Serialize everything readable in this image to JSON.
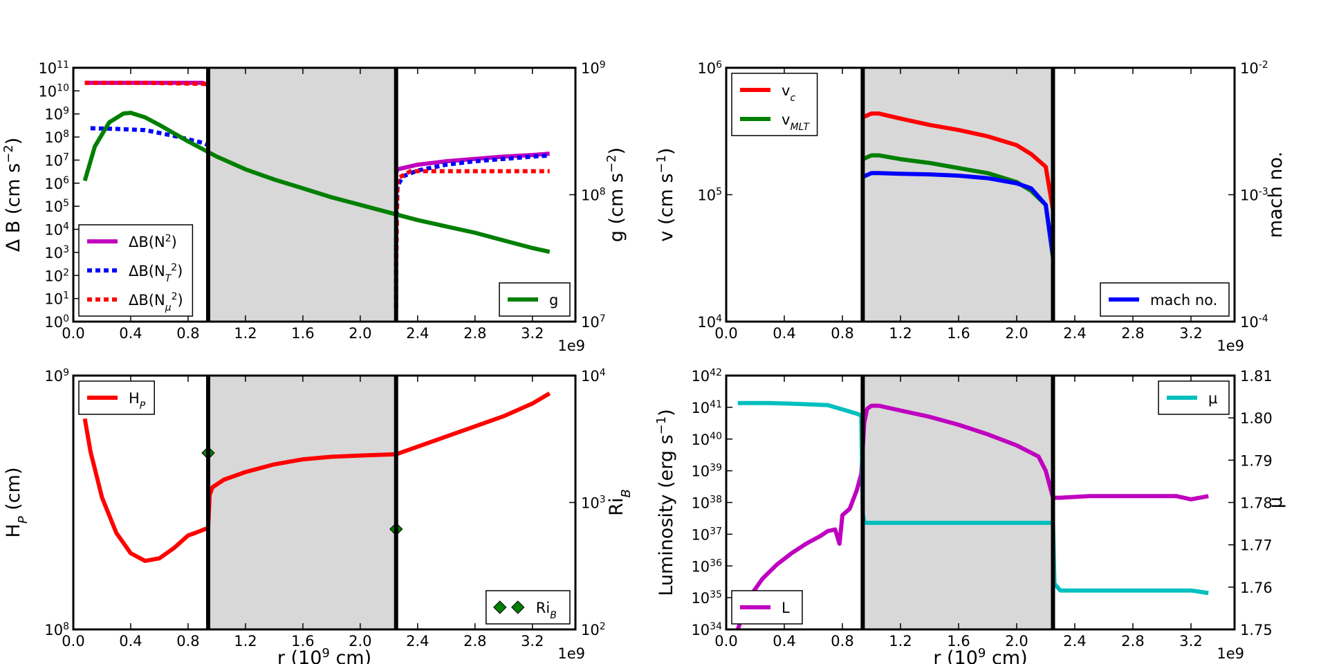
{
  "figure": {
    "xlabel": "r (10",
    "xlabel_sup": "9",
    "xlabel_tail": "  cm)",
    "offset_label": "1e9"
  },
  "chart_data": [
    {
      "id": "p1",
      "type": "line",
      "title": "",
      "xlim": [
        0,
        3.5
      ],
      "xticks": [
        0.0,
        0.4,
        0.8,
        1.2,
        1.6,
        2.0,
        2.4,
        2.8,
        3.2
      ],
      "xtick_labels": [
        "0.0",
        "0.4",
        "0.8",
        "1.2",
        "1.6",
        "2.0",
        "2.4",
        "2.8",
        "3.2"
      ],
      "show_xlabel": false,
      "convective_zone": [
        0.94,
        2.25
      ],
      "left_axis": {
        "label": "Δ B (cm s",
        "label_sup": "−2",
        "label_tail": ")",
        "scale": "log",
        "ylim_exp": [
          0,
          11
        ],
        "ticks_exp": [
          0,
          1,
          2,
          3,
          4,
          5,
          6,
          7,
          8,
          9,
          10,
          11
        ]
      },
      "right_axis": {
        "label": "g (cm s",
        "label_sup": "−2",
        "label_tail": ")",
        "scale": "log",
        "ylim_exp": [
          7,
          9
        ],
        "ticks_exp": [
          7,
          8,
          9
        ]
      },
      "series": [
        {
          "name": "ΔB(N²)",
          "legend": "ΔB(N",
          "legend_sup": "2",
          "legend_tail": ")",
          "axis": "left",
          "color": "#bf00bf",
          "style": "solid",
          "width": 6,
          "x": [
            0.08,
            0.3,
            0.6,
            0.9,
            0.94
          ],
          "y_exp": [
            10.35,
            10.35,
            10.35,
            10.35,
            10.25
          ]
        },
        {
          "name": "ΔB(N²) outer",
          "legend": "",
          "axis": "left",
          "color": "#bf00bf",
          "style": "solid",
          "width": 6,
          "x": [
            2.25,
            2.26,
            2.4,
            2.6,
            2.8,
            3.0,
            3.2,
            3.32
          ],
          "y_exp": [
            6.45,
            6.6,
            6.8,
            6.95,
            7.05,
            7.15,
            7.22,
            7.28
          ]
        },
        {
          "name": "ΔB(N_T²)",
          "legend": "ΔB(N",
          "legend_sub": "T",
          "legend_sup": "2",
          "legend_tail": ")",
          "axis": "left",
          "color": "#0000ff",
          "style": "dotted",
          "width": 6,
          "x": [
            0.12,
            0.3,
            0.5,
            0.7,
            0.9,
            0.94
          ],
          "y_exp": [
            8.38,
            8.35,
            8.3,
            8.05,
            7.75,
            7.65
          ]
        },
        {
          "name": "ΔB(N_T²) outer",
          "legend": "",
          "axis": "left",
          "color": "#0000ff",
          "style": "dotted",
          "width": 6,
          "x": [
            2.25,
            2.25,
            2.26,
            2.3,
            2.4,
            2.6,
            2.8,
            3.0,
            3.2,
            3.32
          ],
          "y_exp": [
            0.6,
            3.5,
            5.9,
            6.3,
            6.55,
            6.8,
            6.95,
            7.05,
            7.15,
            7.2
          ]
        },
        {
          "name": "ΔB(N_μ²)",
          "legend": "ΔB(N",
          "legend_sub": "μ",
          "legend_sup": "2",
          "legend_tail": ")",
          "axis": "left",
          "color": "#ff0000",
          "style": "dotted",
          "width": 6,
          "x": [
            0.08,
            0.5,
            0.94
          ],
          "y_exp": [
            10.35,
            10.35,
            10.3
          ]
        },
        {
          "name": "ΔB(N_μ²) outer",
          "legend": "",
          "axis": "left",
          "color": "#ff0000",
          "style": "dotted",
          "width": 6,
          "x": [
            2.25,
            2.26,
            2.35,
            2.6,
            2.9,
            3.32
          ],
          "y_exp": [
            2.0,
            6.2,
            6.52,
            6.52,
            6.52,
            6.52
          ]
        },
        {
          "name": "g",
          "legend": "g",
          "axis": "right",
          "color": "#007f00",
          "style": "solid",
          "width": 6,
          "x": [
            0.08,
            0.15,
            0.25,
            0.35,
            0.4,
            0.5,
            0.6,
            0.8,
            1.0,
            1.2,
            1.4,
            1.6,
            1.8,
            2.0,
            2.2,
            2.4,
            2.6,
            2.8,
            3.0,
            3.2,
            3.32
          ],
          "y_exp": [
            8.11,
            8.38,
            8.57,
            8.64,
            8.645,
            8.61,
            8.55,
            8.42,
            8.3,
            8.2,
            8.12,
            8.05,
            7.98,
            7.92,
            7.86,
            7.8,
            7.75,
            7.7,
            7.64,
            7.58,
            7.55
          ]
        }
      ],
      "legends": [
        {
          "position": "lower-left",
          "entries": [
            0,
            2,
            4
          ]
        },
        {
          "position": "lower-right",
          "entries": [
            6
          ]
        }
      ]
    },
    {
      "id": "p2",
      "type": "line",
      "title": "",
      "xlim": [
        0,
        3.5
      ],
      "xticks": [
        0.0,
        0.4,
        0.8,
        1.2,
        1.6,
        2.0,
        2.4,
        2.8,
        3.2
      ],
      "xtick_labels": [
        "0.0",
        "0.4",
        "0.8",
        "1.2",
        "1.6",
        "2.0",
        "2.4",
        "2.8",
        "3.2"
      ],
      "show_xlabel": false,
      "convective_zone": [
        0.94,
        2.25
      ],
      "left_axis": {
        "label": "v (cm s",
        "label_sup": "−1",
        "label_tail": ")",
        "scale": "log",
        "ylim_exp": [
          4,
          6
        ],
        "ticks_exp": [
          4,
          5,
          6
        ]
      },
      "right_axis": {
        "label": "mach no.",
        "scale": "log",
        "ylim_exp": [
          -4,
          -2
        ],
        "ticks_exp": [
          -4,
          -3,
          -2
        ]
      },
      "series": [
        {
          "name": "v_c",
          "legend": "v",
          "legend_sub": "c",
          "axis": "left",
          "color": "#ff0000",
          "style": "solid",
          "width": 6,
          "x": [
            0.94,
            1.0,
            1.05,
            1.2,
            1.4,
            1.6,
            1.8,
            2.0,
            2.1,
            2.2,
            2.25
          ],
          "y_exp": [
            5.61,
            5.64,
            5.64,
            5.6,
            5.55,
            5.51,
            5.46,
            5.39,
            5.32,
            5.22,
            4.88
          ]
        },
        {
          "name": "v_MLT",
          "legend": "v",
          "legend_sub": "MLT",
          "axis": "left",
          "color": "#007f00",
          "style": "solid",
          "width": 6,
          "x": [
            0.94,
            1.0,
            1.05,
            1.2,
            1.4,
            1.6,
            1.8,
            2.0,
            2.1,
            2.2,
            2.25
          ],
          "y_exp": [
            5.28,
            5.31,
            5.31,
            5.28,
            5.25,
            5.21,
            5.17,
            5.1,
            5.03,
            4.92,
            4.5
          ]
        },
        {
          "name": "mach no.",
          "legend": "mach no.",
          "axis": "right",
          "color": "#0000ff",
          "style": "solid",
          "width": 6,
          "x": [
            0.94,
            1.0,
            1.05,
            1.2,
            1.4,
            1.6,
            1.8,
            2.0,
            2.1,
            2.2,
            2.25
          ],
          "y_exp": [
            -2.86,
            -2.83,
            -2.83,
            -2.835,
            -2.84,
            -2.85,
            -2.87,
            -2.91,
            -2.95,
            -3.08,
            -3.48
          ]
        }
      ],
      "legends": [
        {
          "position": "upper-left",
          "entries": [
            0,
            1
          ]
        },
        {
          "position": "lower-right",
          "entries": [
            2
          ]
        }
      ]
    },
    {
      "id": "p3",
      "type": "line",
      "title": "",
      "xlim": [
        0,
        3.5
      ],
      "xticks": [
        0.0,
        0.4,
        0.8,
        1.2,
        1.6,
        2.0,
        2.4,
        2.8,
        3.2
      ],
      "xtick_labels": [
        "0.0",
        "0.4",
        "0.8",
        "1.2",
        "1.6",
        "2.0",
        "2.4",
        "2.8",
        "3.2"
      ],
      "show_xlabel": true,
      "convective_zone": [
        0.94,
        2.25
      ],
      "left_axis": {
        "label": "H",
        "label_sub": "P",
        "label_tail": " (cm)",
        "scale": "log",
        "ylim_exp": [
          8,
          9
        ],
        "ticks_exp": [
          8,
          9
        ]
      },
      "right_axis": {
        "label": "Ri",
        "label_sub": "B",
        "scale": "log",
        "ylim_exp": [
          2,
          4
        ],
        "ticks_exp": [
          2,
          3,
          4
        ]
      },
      "series": [
        {
          "name": "H_P",
          "legend": "H",
          "legend_sub": "P",
          "axis": "left",
          "color": "#ff0000",
          "style": "solid",
          "width": 6,
          "x": [
            0.08,
            0.12,
            0.2,
            0.3,
            0.4,
            0.5,
            0.6,
            0.7,
            0.8,
            0.85,
            0.94,
            0.95,
            0.97,
            1.05,
            1.2,
            1.4,
            1.6,
            1.8,
            2.0,
            2.25,
            2.4,
            2.6,
            2.8,
            3.0,
            3.2,
            3.32
          ],
          "y_exp": [
            8.83,
            8.7,
            8.52,
            8.38,
            8.3,
            8.27,
            8.28,
            8.32,
            8.37,
            8.38,
            8.4,
            8.53,
            8.56,
            8.59,
            8.62,
            8.65,
            8.67,
            8.68,
            8.685,
            8.69,
            8.72,
            8.76,
            8.8,
            8.84,
            8.89,
            8.93
          ]
        },
        {
          "name": "Ri_B",
          "legend": "Ri",
          "legend_sub": "B",
          "axis": "right",
          "color": "#007f00",
          "style": "diamond",
          "width": 0,
          "x": [
            0.94,
            2.25
          ],
          "y_exp": [
            3.39,
            2.79
          ]
        }
      ],
      "legends": [
        {
          "position": "upper-left",
          "entries": [
            0
          ]
        },
        {
          "position": "lower-right",
          "entries": [
            1
          ]
        }
      ]
    },
    {
      "id": "p4",
      "type": "line",
      "title": "",
      "xlim": [
        0,
        3.5
      ],
      "xticks": [
        0.0,
        0.4,
        0.8,
        1.2,
        1.6,
        2.0,
        2.4,
        2.8,
        3.2
      ],
      "xtick_labels": [
        "0.0",
        "0.4",
        "0.8",
        "1.2",
        "1.6",
        "2.0",
        "2.4",
        "2.8",
        "3.2"
      ],
      "show_xlabel": true,
      "convective_zone": [
        0.94,
        2.25
      ],
      "left_axis": {
        "label": "Luminosity (erg s",
        "label_sup": "−1",
        "label_tail": ")",
        "scale": "log",
        "ylim_exp": [
          34,
          42
        ],
        "ticks_exp": [
          34,
          35,
          36,
          37,
          38,
          39,
          40,
          41,
          42
        ]
      },
      "right_axis": {
        "label": "μ",
        "scale": "linear",
        "ylim": [
          1.75,
          1.81
        ],
        "ticks": [
          1.75,
          1.76,
          1.77,
          1.78,
          1.79,
          1.8,
          1.81
        ],
        "tick_labels": [
          "1.75",
          "1.76",
          "1.77",
          "1.78",
          "1.79",
          "1.80",
          "1.81"
        ]
      },
      "series": [
        {
          "name": "L",
          "legend": "L",
          "axis": "left",
          "color": "#bf00bf",
          "style": "solid",
          "width": 6,
          "x": [
            0.08,
            0.15,
            0.25,
            0.35,
            0.45,
            0.55,
            0.65,
            0.7,
            0.75,
            0.78,
            0.8,
            0.85,
            0.9,
            0.93,
            0.95,
            0.97,
            1.0,
            1.05,
            1.2,
            1.4,
            1.6,
            1.8,
            2.0,
            2.15,
            2.2,
            2.25,
            2.3,
            2.5,
            2.8,
            3.1,
            3.2,
            3.32
          ],
          "y_exp": [
            34.0,
            34.95,
            35.6,
            36.05,
            36.4,
            36.7,
            36.95,
            37.1,
            37.15,
            36.7,
            37.6,
            37.8,
            38.4,
            38.9,
            40.5,
            40.95,
            41.05,
            41.05,
            40.9,
            40.7,
            40.45,
            40.15,
            39.8,
            39.45,
            39.0,
            38.15,
            38.15,
            38.2,
            38.2,
            38.2,
            38.1,
            38.2
          ]
        },
        {
          "name": "μ",
          "legend": "μ",
          "axis": "right",
          "color": "#00bfbf",
          "style": "solid",
          "width": 6,
          "x": [
            0.08,
            0.3,
            0.5,
            0.7,
            0.75,
            0.8,
            0.85,
            0.9,
            0.93,
            0.94,
            0.95,
            1.2,
            1.6,
            2.0,
            2.25,
            2.26,
            2.3,
            2.6,
            3.0,
            3.2,
            3.32
          ],
          "y_exp": [
            1.8035,
            1.8035,
            1.8033,
            1.803,
            1.8025,
            1.802,
            1.8015,
            1.801,
            1.8005,
            1.7775,
            1.7752,
            1.7752,
            1.7752,
            1.7752,
            1.7752,
            1.7608,
            1.7592,
            1.7592,
            1.7592,
            1.7592,
            1.7586
          ]
        }
      ],
      "legends": [
        {
          "position": "lower-left",
          "entries": [
            0
          ]
        },
        {
          "position": "upper-right",
          "entries": [
            1
          ]
        }
      ]
    }
  ]
}
